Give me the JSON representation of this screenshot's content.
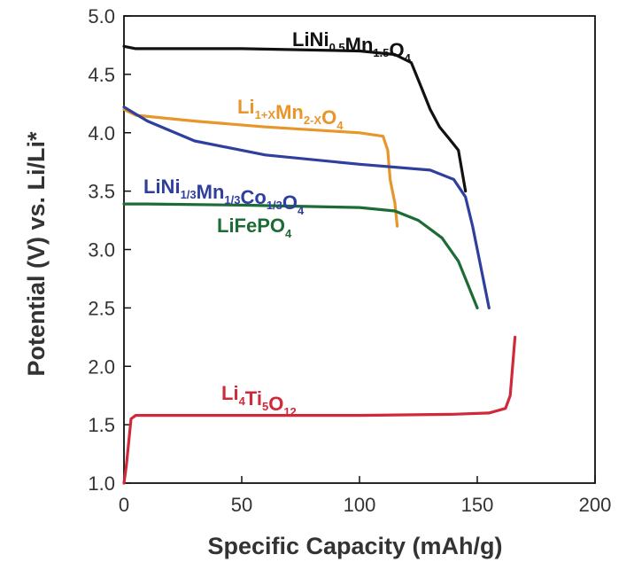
{
  "chart_data": {
    "type": "line",
    "xlabel": "Specific Capacity (mAh/g)",
    "ylabel": "Potential (V) vs. Li/Li*",
    "xlim": [
      0,
      200
    ],
    "ylim": [
      1.0,
      5.0
    ],
    "x_ticks": [
      "0",
      "50",
      "100",
      "150",
      "200"
    ],
    "y_ticks": [
      "1.0",
      "1.5",
      "2.0",
      "2.5",
      "3.0",
      "3.5",
      "4.0",
      "4.5",
      "5.0"
    ],
    "grid": false,
    "legend": "inline labels",
    "series": [
      {
        "label_parts": [
          [
            "LiNi",
            ""
          ],
          [
            "0.5",
            "sub"
          ],
          [
            "Mn",
            ""
          ],
          [
            "1.5",
            "sub"
          ],
          [
            "O",
            ""
          ],
          [
            "4",
            "sub"
          ]
        ],
        "color": "#111111",
        "points": [
          [
            0,
            4.74
          ],
          [
            5,
            4.72
          ],
          [
            50,
            4.72
          ],
          [
            100,
            4.7
          ],
          [
            115,
            4.67
          ],
          [
            122,
            4.6
          ],
          [
            126,
            4.4
          ],
          [
            130,
            4.2
          ],
          [
            134,
            4.05
          ],
          [
            138,
            3.95
          ],
          [
            142,
            3.85
          ],
          [
            145,
            3.5
          ]
        ]
      },
      {
        "label_parts": [
          [
            "Li",
            ""
          ],
          [
            "1+X",
            "sub"
          ],
          [
            "Mn",
            ""
          ],
          [
            "2-X",
            "sub"
          ],
          [
            "O",
            ""
          ],
          [
            "4",
            "sub"
          ]
        ],
        "color": "#e8952a",
        "points": [
          [
            0,
            4.2
          ],
          [
            5,
            4.15
          ],
          [
            30,
            4.1
          ],
          [
            60,
            4.05
          ],
          [
            100,
            4.0
          ],
          [
            110,
            3.97
          ],
          [
            112,
            3.85
          ],
          [
            113,
            3.6
          ],
          [
            114,
            3.5
          ],
          [
            115,
            3.4
          ],
          [
            116,
            3.2
          ]
        ]
      },
      {
        "label_parts": [
          [
            "LiNi",
            ""
          ],
          [
            "1/3",
            "sub"
          ],
          [
            "Mn",
            ""
          ],
          [
            "1/3",
            "sub"
          ],
          [
            "Co",
            ""
          ],
          [
            "1/3",
            "sub"
          ],
          [
            "O",
            ""
          ],
          [
            "4",
            "sub"
          ]
        ],
        "color": "#2e3f9e",
        "points": [
          [
            0,
            4.22
          ],
          [
            10,
            4.1
          ],
          [
            30,
            3.93
          ],
          [
            60,
            3.81
          ],
          [
            100,
            3.73
          ],
          [
            130,
            3.68
          ],
          [
            140,
            3.6
          ],
          [
            145,
            3.45
          ],
          [
            148,
            3.2
          ],
          [
            151,
            2.9
          ],
          [
            153,
            2.7
          ],
          [
            155,
            2.5
          ]
        ]
      },
      {
        "label_parts": [
          [
            "LiFePO",
            ""
          ],
          [
            "4",
            "sub"
          ]
        ],
        "color": "#1d6b35",
        "points": [
          [
            0,
            3.39
          ],
          [
            10,
            3.39
          ],
          [
            50,
            3.38
          ],
          [
            100,
            3.36
          ],
          [
            115,
            3.33
          ],
          [
            125,
            3.25
          ],
          [
            135,
            3.1
          ],
          [
            142,
            2.9
          ],
          [
            146,
            2.7
          ],
          [
            150,
            2.5
          ]
        ]
      },
      {
        "label_parts": [
          [
            "Li",
            ""
          ],
          [
            "4",
            "sub"
          ],
          [
            "Ti",
            ""
          ],
          [
            "5",
            "sub"
          ],
          [
            "O",
            ""
          ],
          [
            "12",
            "sub"
          ]
        ],
        "color": "#d02a3a",
        "points": [
          [
            0,
            1.0
          ],
          [
            1,
            1.15
          ],
          [
            3,
            1.55
          ],
          [
            5,
            1.58
          ],
          [
            50,
            1.58
          ],
          [
            100,
            1.58
          ],
          [
            140,
            1.59
          ],
          [
            155,
            1.6
          ],
          [
            162,
            1.64
          ],
          [
            164,
            1.75
          ],
          [
            165,
            2.0
          ],
          [
            166,
            2.25
          ]
        ]
      }
    ]
  }
}
